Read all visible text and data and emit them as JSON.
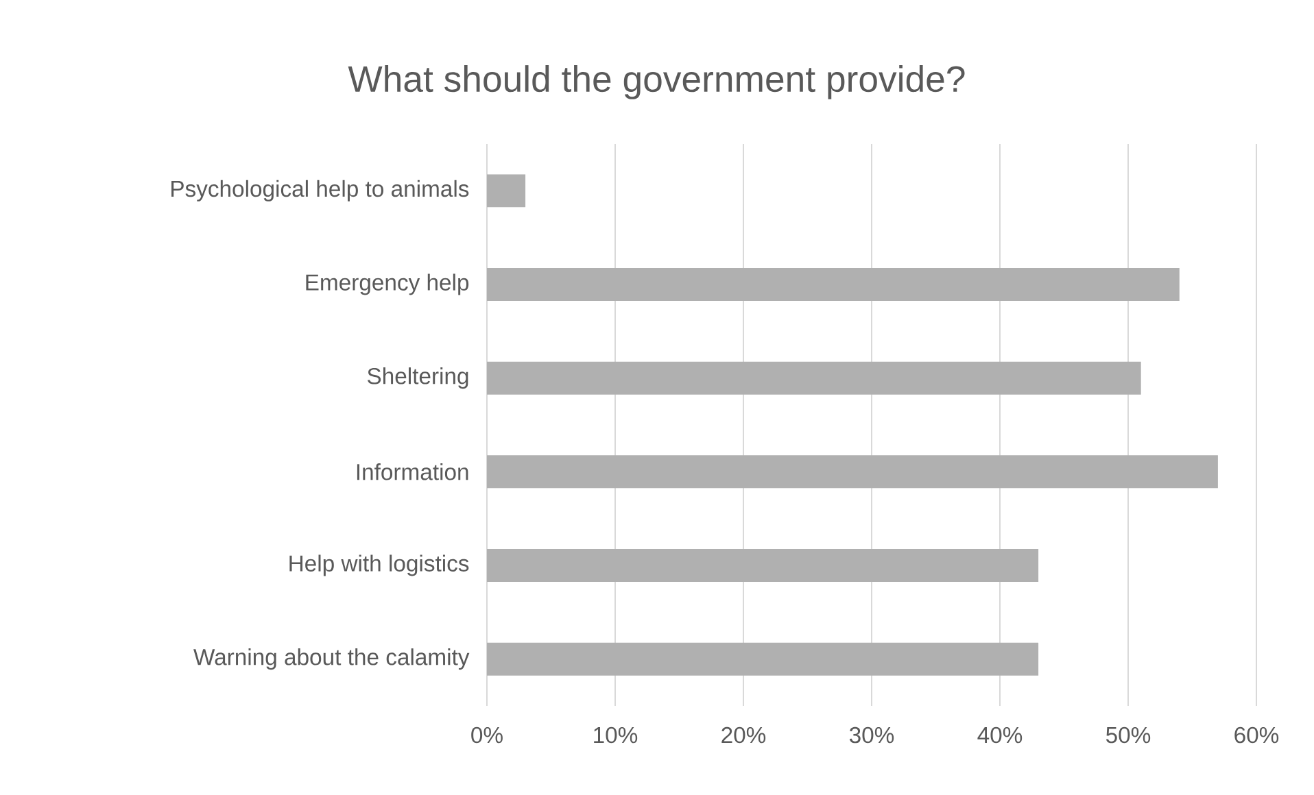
{
  "chart_data": {
    "type": "bar",
    "orientation": "horizontal",
    "title": "What should the government provide?",
    "categories": [
      "Psychological help to animals",
      "Emergency help",
      "Sheltering",
      "Information",
      "Help with logistics",
      "Warning about the calamity"
    ],
    "values": [
      3,
      54,
      51,
      57,
      43,
      43
    ],
    "color": "#b0b0b0",
    "xlim": [
      0,
      60
    ],
    "xticks": [
      {
        "value": 0,
        "label": "0%"
      },
      {
        "value": 10,
        "label": "10%"
      },
      {
        "value": 20,
        "label": "20%"
      },
      {
        "value": 30,
        "label": "30%"
      },
      {
        "value": 40,
        "label": "40%"
      },
      {
        "value": 50,
        "label": "50%"
      },
      {
        "value": 60,
        "label": "60%"
      }
    ],
    "grid": "x"
  }
}
